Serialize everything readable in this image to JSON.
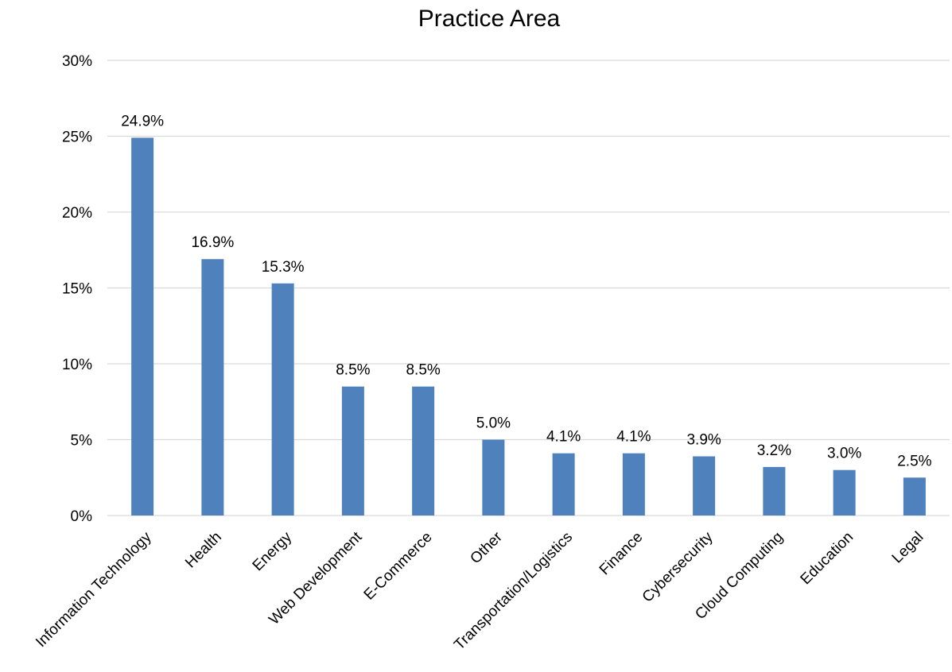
{
  "chart_data": {
    "type": "bar",
    "title": "Practice Area",
    "xlabel": "",
    "ylabel": "",
    "categories": [
      "Information Technology",
      "Health",
      "Energy",
      "Web Development",
      "E-Commerce",
      "Other",
      "Transportation/Logistics",
      "Finance",
      "Cybersecurity",
      "Cloud Computing",
      "Education",
      "Legal"
    ],
    "values": [
      24.9,
      16.9,
      15.3,
      8.5,
      8.5,
      5.0,
      4.1,
      4.1,
      3.9,
      3.2,
      3.0,
      2.5
    ],
    "data_labels": [
      "24.9%",
      "16.9%",
      "15.3%",
      "8.5%",
      "8.5%",
      "5.0%",
      "4.1%",
      "4.1%",
      "3.9%",
      "3.2%",
      "3.0%",
      "2.5%"
    ],
    "ylim": [
      0,
      30
    ],
    "yticks": [
      0,
      5,
      10,
      15,
      20,
      25,
      30
    ],
    "ytick_labels": [
      "0%",
      "5%",
      "10%",
      "15%",
      "20%",
      "25%",
      "30%"
    ],
    "grid": true,
    "legend": "none",
    "bar_color": "#4f81bd",
    "grid_color": "#d9d9d9"
  }
}
